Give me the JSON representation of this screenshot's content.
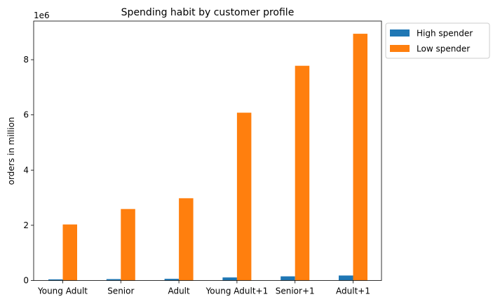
{
  "chart_data": {
    "type": "bar",
    "title": "Spending habit by customer profile",
    "xlabel": "",
    "ylabel": "orders in million",
    "y_offset_label": "1e6",
    "categories": [
      "Young Adult",
      "Senior",
      "Adult",
      "Young Adult+1",
      "Senior+1",
      "Adult+1"
    ],
    "series": [
      {
        "name": "High spender",
        "color": "#1f77b4",
        "values": [
          40000,
          50000,
          60000,
          110000,
          150000,
          180000
        ]
      },
      {
        "name": "Low spender",
        "color": "#ff7f0e",
        "values": [
          2030000,
          2590000,
          2980000,
          6080000,
          7780000,
          8940000
        ]
      }
    ],
    "ylim": [
      0,
      9400000
    ],
    "yticks": [
      0,
      2000000,
      4000000,
      6000000,
      8000000
    ],
    "ytick_labels": [
      "0",
      "2",
      "4",
      "6",
      "8"
    ],
    "grid": false,
    "legend_position": "outside-top-right"
  }
}
